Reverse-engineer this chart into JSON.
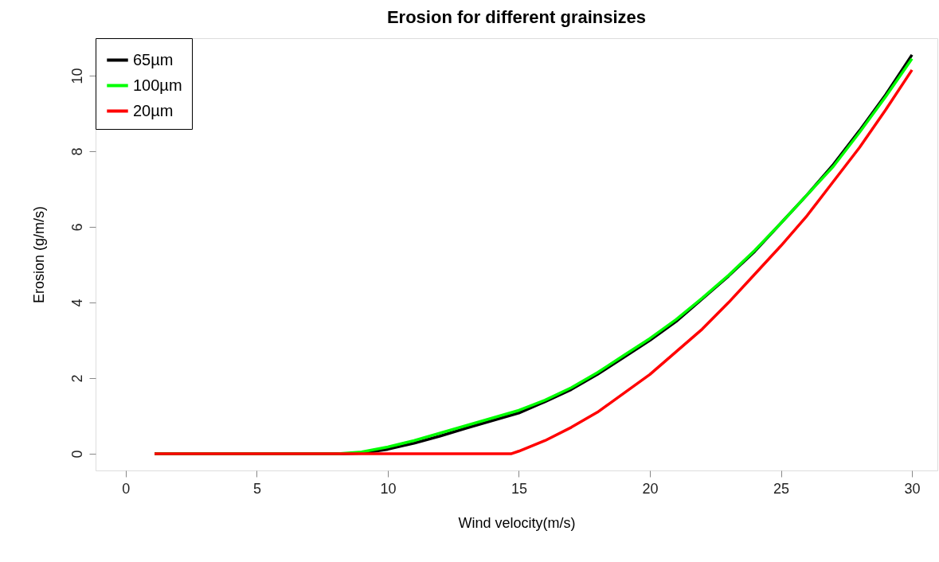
{
  "chart_data": {
    "type": "line",
    "title": "Erosion for different grainsizes",
    "xlabel": "Wind velocity(m/s)",
    "ylabel": "Erosion (g/m/s)",
    "xlim": [
      -1.15,
      30.97
    ],
    "ylim": [
      -0.44,
      10.99
    ],
    "xticks": [
      0,
      5,
      10,
      15,
      20,
      25,
      30
    ],
    "yticks": [
      0,
      2,
      4,
      6,
      8,
      10
    ],
    "grid": false,
    "legend": "top left",
    "marker": "none",
    "line_style": "solid",
    "series": [
      {
        "name": "65µm",
        "color": "#000000",
        "x": [
          1.1,
          8.3,
          9,
          10,
          11,
          12,
          13,
          14,
          15,
          16,
          17,
          18,
          19,
          20,
          21,
          22,
          23,
          24,
          25,
          26,
          27,
          28,
          29,
          30
        ],
        "values": [
          0,
          0,
          0.02,
          0.12,
          0.28,
          0.47,
          0.68,
          0.88,
          1.08,
          1.38,
          1.7,
          2.1,
          2.55,
          3.0,
          3.5,
          4.1,
          4.7,
          5.35,
          6.1,
          6.85,
          7.65,
          8.55,
          9.5,
          10.55
        ]
      },
      {
        "name": "100µm",
        "color": "#00ff00",
        "x": [
          1.1,
          8.1,
          9,
          10,
          11,
          12,
          13,
          14,
          15,
          16,
          17,
          18,
          19,
          20,
          21,
          22,
          23,
          24,
          25,
          26,
          27,
          28,
          29,
          30
        ],
        "values": [
          0,
          0,
          0.05,
          0.18,
          0.35,
          0.55,
          0.75,
          0.95,
          1.15,
          1.42,
          1.75,
          2.15,
          2.6,
          3.05,
          3.55,
          4.12,
          4.72,
          5.38,
          6.1,
          6.85,
          7.6,
          8.5,
          9.45,
          10.45
        ]
      },
      {
        "name": "20µm",
        "color": "#ff0000",
        "x": [
          1.1,
          14.7,
          15,
          16,
          17,
          18,
          19,
          20,
          21,
          22,
          23,
          24,
          25,
          26,
          27,
          28,
          29,
          30
        ],
        "values": [
          0,
          0,
          0.07,
          0.35,
          0.7,
          1.1,
          1.6,
          2.1,
          2.7,
          3.3,
          4.0,
          4.75,
          5.5,
          6.3,
          7.2,
          8.1,
          9.1,
          10.15
        ]
      }
    ]
  }
}
